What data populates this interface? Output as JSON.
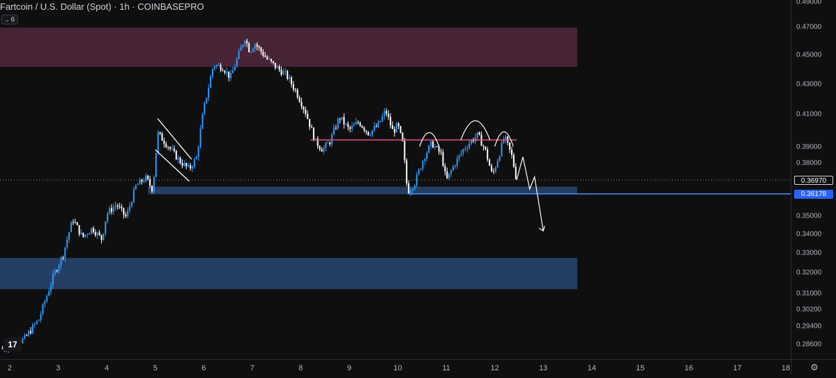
{
  "header": {
    "title": "Fartcoin / U.S. Dollar (Spot) · 1h · COINBASEPRO",
    "collapse_count": "6"
  },
  "last_price_label": "0.36970",
  "support_line_label": "0.36178",
  "colors": {
    "background": "#0f0f10",
    "candle_up": "#2e9bff",
    "candle_down": "#ffffff",
    "supply_zone": "#4c2638",
    "demand_zone": "#27426a",
    "resistance_line": "#e0558a",
    "support_line": "#4f8fff",
    "drawing": "#ffffff"
  },
  "icons": [
    "tradingview-logo-icon",
    "chevron-down-icon",
    "gear-icon"
  ],
  "chart_data": {
    "type": "candlestick",
    "symbol": "Fartcoin / U.S. Dollar (Spot)",
    "interval": "1h",
    "exchange": "COINBASEPRO",
    "x_ticks": [
      "2",
      "3",
      "4",
      "5",
      "6",
      "7",
      "8",
      "9",
      "10",
      "11",
      "12",
      "13",
      "14",
      "15",
      "16",
      "17",
      "18"
    ],
    "x_range": [
      1.8,
      18.1
    ],
    "y_ticks": [
      "0.49000",
      "0.47000",
      "0.45000",
      "0.43000",
      "0.41000",
      "0.39000",
      "0.38000",
      "0.35000",
      "0.34000",
      "0.33000",
      "0.32000",
      "0.31000",
      "0.30200",
      "0.29400",
      "0.28600"
    ],
    "y_range": [
      0.279,
      0.492
    ],
    "last_price": 0.3697,
    "close_path": [
      [
        1.85,
        0.284
      ],
      [
        2.3,
        0.288
      ],
      [
        2.6,
        0.297
      ],
      [
        2.9,
        0.318
      ],
      [
        3.1,
        0.329
      ],
      [
        3.3,
        0.348
      ],
      [
        3.5,
        0.338
      ],
      [
        3.7,
        0.343
      ],
      [
        3.9,
        0.337
      ],
      [
        4.0,
        0.351
      ],
      [
        4.2,
        0.356
      ],
      [
        4.4,
        0.349
      ],
      [
        4.6,
        0.366
      ],
      [
        4.8,
        0.371
      ],
      [
        4.95,
        0.364
      ],
      [
        5.05,
        0.398
      ],
      [
        5.3,
        0.389
      ],
      [
        5.5,
        0.381
      ],
      [
        5.7,
        0.376
      ],
      [
        5.85,
        0.383
      ],
      [
        6.0,
        0.413
      ],
      [
        6.2,
        0.443
      ],
      [
        6.4,
        0.441
      ],
      [
        6.55,
        0.434
      ],
      [
        6.7,
        0.448
      ],
      [
        6.85,
        0.462
      ],
      [
        6.95,
        0.452
      ],
      [
        7.05,
        0.458
      ],
      [
        7.3,
        0.447
      ],
      [
        7.5,
        0.441
      ],
      [
        7.7,
        0.436
      ],
      [
        7.9,
        0.425
      ],
      [
        8.1,
        0.411
      ],
      [
        8.3,
        0.393
      ],
      [
        8.45,
        0.388
      ],
      [
        8.6,
        0.393
      ],
      [
        8.8,
        0.408
      ],
      [
        9.0,
        0.4
      ],
      [
        9.2,
        0.405
      ],
      [
        9.4,
        0.398
      ],
      [
        9.6,
        0.403
      ],
      [
        9.75,
        0.412
      ],
      [
        9.9,
        0.399
      ],
      [
        10.0,
        0.403
      ],
      [
        10.1,
        0.392
      ],
      [
        10.2,
        0.363
      ],
      [
        10.35,
        0.368
      ],
      [
        10.55,
        0.384
      ],
      [
        10.7,
        0.392
      ],
      [
        10.9,
        0.385
      ],
      [
        11.0,
        0.369
      ],
      [
        11.15,
        0.378
      ],
      [
        11.35,
        0.388
      ],
      [
        11.5,
        0.393
      ],
      [
        11.65,
        0.397
      ],
      [
        11.8,
        0.388
      ],
      [
        11.95,
        0.372
      ],
      [
        12.1,
        0.386
      ],
      [
        12.2,
        0.396
      ],
      [
        12.35,
        0.384
      ],
      [
        12.45,
        0.3697
      ]
    ],
    "zones": [
      {
        "name": "supply",
        "y_from": 0.4415,
        "y_to": 0.4692,
        "x_from": 1.8,
        "x_to": 13.7
      },
      {
        "name": "demand-upper",
        "y_from": 0.3616,
        "y_to": 0.3659,
        "x_from": 4.85,
        "x_to": 13.7
      },
      {
        "name": "demand-lower",
        "y_from": 0.3118,
        "y_to": 0.3272,
        "x_from": 1.8,
        "x_to": 13.7
      }
    ],
    "lines": [
      {
        "name": "resistance",
        "y": 0.394,
        "x_from": 8.2,
        "x_to": 12.45
      },
      {
        "name": "support",
        "y": 0.36178,
        "x_from": 10.2,
        "x_to": 18.1
      }
    ],
    "annotations": [
      "descending-channel-flag",
      "head-and-shoulders-arcs",
      "projected-breakdown-arrow"
    ]
  }
}
